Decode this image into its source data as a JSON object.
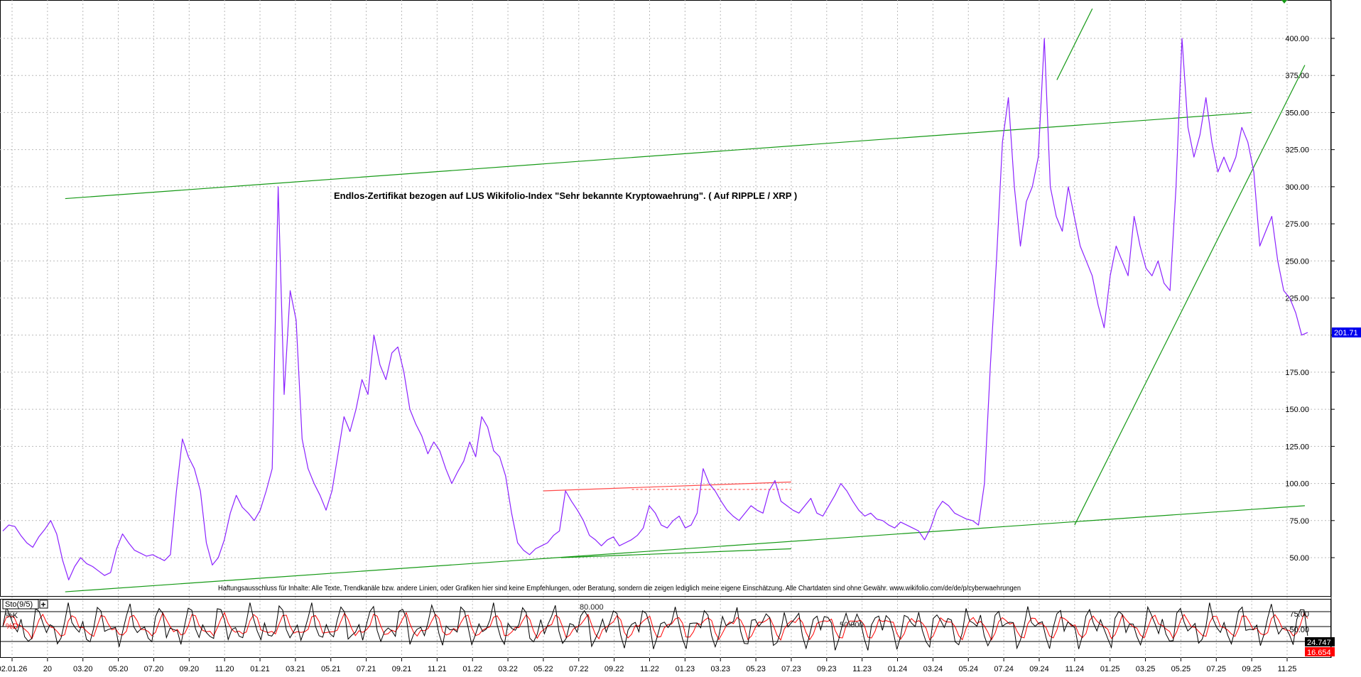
{
  "chart_data": [
    {
      "type": "line",
      "title": "Endlos-Zertifikat bezogen auf LUS Wikifolio-Index \"Sehr bekannte Kryptowaehrung\". ( Auf RIPPLE / XRP )",
      "disclaimer": "Haftungsausschluss für Inhalte: Alle Texte, Trendkanäle bzw. andere Linien, oder Grafiken hier sind keine Empfehlungen, oder Beratung, sondern die zeigen lediglich meine eigene Einschätzung. Alle Chartdaten sind ohne Gewähr. www.wikifolio.com/de/de/p/cyberwaehrungen",
      "ylim": [
        25,
        425
      ],
      "y_ticks": [
        50,
        75,
        100,
        125,
        150,
        175,
        200,
        225,
        250,
        275,
        300,
        325,
        350,
        375,
        400
      ],
      "y_tick_labels": [
        "50.00",
        "75.00",
        "100.00",
        "125.00",
        "150.00",
        "175.00",
        "",
        "225.00",
        "250.00",
        "275.00",
        "300.00",
        "325.00",
        "350.00",
        "375.00",
        "400.00"
      ],
      "x_tick_labels": [
        "02.01.26",
        "20",
        "03.20",
        "05.20",
        "07.20",
        "09.20",
        "11.20",
        "01.21",
        "03.21",
        "05.21",
        "07.21",
        "09.21",
        "11.21",
        "01.22",
        "03.22",
        "05.22",
        "07.22",
        "09.22",
        "11.22",
        "01.23",
        "03.23",
        "05.23",
        "07.23",
        "09.23",
        "11.23",
        "01.24",
        "03.24",
        "05.24",
        "07.24",
        "09.24",
        "11.24",
        "01.25",
        "03.25",
        "05.25",
        "07.25",
        "09.25",
        "11.25"
      ],
      "grid": true,
      "last_value_label": "201.71",
      "last_value": 201.71,
      "series": [
        {
          "color": "#8b22ff",
          "values": [
            68,
            72,
            71,
            65,
            60,
            57,
            64,
            69,
            75,
            66,
            48,
            35,
            44,
            50,
            46,
            44,
            41,
            38,
            40,
            56,
            66,
            60,
            55,
            53,
            51,
            52,
            50,
            48,
            52,
            95,
            130,
            118,
            110,
            95,
            60,
            45,
            50,
            62,
            80,
            92,
            84,
            80,
            75,
            82,
            95,
            110,
            300,
            160,
            230,
            210,
            130,
            110,
            100,
            92,
            82,
            95,
            120,
            145,
            135,
            150,
            170,
            160,
            200,
            180,
            170,
            188,
            192,
            175,
            150,
            140,
            132,
            120,
            128,
            122,
            110,
            100,
            108,
            115,
            128,
            118,
            145,
            138,
            122,
            118,
            105,
            80,
            60,
            55,
            52,
            56,
            58,
            60,
            65,
            68,
            95,
            88,
            82,
            75,
            65,
            62,
            58,
            62,
            64,
            58,
            60,
            62,
            65,
            70,
            85,
            80,
            72,
            70,
            75,
            78,
            70,
            72,
            80,
            110,
            100,
            95,
            88,
            82,
            78,
            75,
            80,
            85,
            82,
            80,
            95,
            102,
            88,
            85,
            82,
            80,
            85,
            90,
            80,
            78,
            85,
            92,
            100,
            95,
            88,
            82,
            78,
            80,
            76,
            75,
            72,
            70,
            74,
            72,
            70,
            68,
            62,
            70,
            82,
            88,
            85,
            80,
            78,
            76,
            75,
            72,
            100,
            180,
            250,
            330,
            360,
            300,
            260,
            290,
            300,
            320,
            400,
            300,
            280,
            270,
            300,
            280,
            260,
            250,
            240,
            220,
            205,
            240,
            260,
            250,
            240,
            280,
            260,
            245,
            240,
            250,
            235,
            230,
            300,
            400,
            340,
            320,
            335,
            360,
            330,
            310,
            320,
            310,
            320,
            340,
            330,
            310,
            260,
            270,
            280,
            250,
            230,
            225,
            215,
            200,
            201.71
          ]
        }
      ],
      "trend_lines": [
        {
          "color": "#159915",
          "from": [
            "02.20",
            292
          ],
          "to": [
            "09.25",
            350
          ]
        },
        {
          "color": "#159915",
          "from": [
            "02.20",
            27
          ],
          "to": [
            "12.25",
            85
          ]
        },
        {
          "color": "#159915",
          "from": [
            "11.24",
            72
          ],
          "to": [
            "12.25",
            382
          ]
        },
        {
          "color": "#159915",
          "from": [
            "10.24",
            372
          ],
          "to": [
            "12.24",
            420
          ]
        },
        {
          "color": "#159915",
          "from": [
            "06.22",
            50
          ],
          "to": [
            "07.23",
            56
          ]
        },
        {
          "color": "#ff4a4a",
          "from": [
            "05.22",
            95
          ],
          "to": [
            "07.23",
            101
          ]
        },
        {
          "color": "#ff4a4a",
          "style": "dashed",
          "from": [
            "10.22",
            96
          ],
          "to": [
            "07.23",
            96
          ]
        }
      ]
    },
    {
      "type": "line",
      "indicator_label": "Sto(9/5)",
      "legend": [
        "%K",
        "%D"
      ],
      "ylim": [
        -5,
        100
      ],
      "y_tick_labels": [
        "75.00",
        "50.00"
      ],
      "y_ticks": [
        75,
        50
      ],
      "annotations": [
        "80.000",
        "50.000"
      ],
      "last_k_label": "24.747",
      "last_d_label": "16.654",
      "series": [
        {
          "name": "%K",
          "color": "#000000"
        },
        {
          "name": "%D",
          "color": "#ff0000"
        }
      ],
      "reference_lines": [
        80,
        50,
        20
      ]
    }
  ],
  "colors": {
    "price": "#8b22ff",
    "trend": "#159915",
    "trend_red": "#ff4a4a",
    "last_badge": "#0000ee",
    "k_badge": "#000000",
    "d_badge": "#ff0000",
    "grid": "#b9b9b9"
  }
}
